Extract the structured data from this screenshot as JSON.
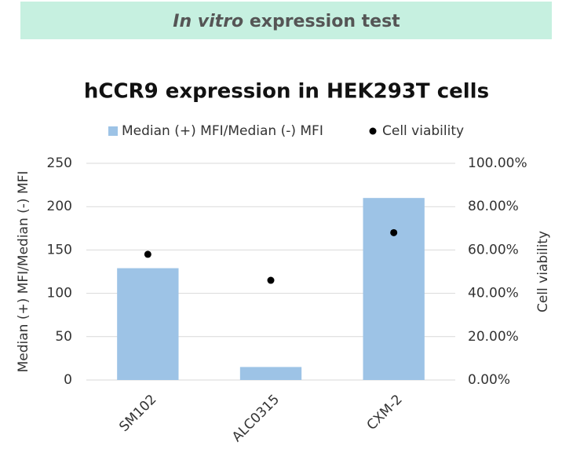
{
  "banner": {
    "italic": "In vitro",
    "text": "expression test"
  },
  "chart_data": {
    "type": "bar",
    "title": "hCCR9 expression in HEK293T cells",
    "categories": [
      "SM102",
      "ALC0315",
      "CXM-2"
    ],
    "series": [
      {
        "name": "Median (+) MFI/Median (-) MFI",
        "type": "bar",
        "color": "#9dc3e6",
        "values": [
          129,
          15,
          210
        ]
      },
      {
        "name": "Cell viability",
        "type": "scatter",
        "color": "#000000",
        "axis": "y2",
        "values": [
          58,
          46,
          68
        ]
      }
    ],
    "y_label": "Median (+) MFI/Median (-) MFI",
    "y2_label": "Cell viability",
    "ylim": [
      0,
      250
    ],
    "yticks": [
      0,
      50,
      100,
      150,
      200,
      250
    ],
    "y2lim": [
      0,
      100
    ],
    "y2ticks": [
      {
        "value": 0,
        "label": "0.00%"
      },
      {
        "value": 20,
        "label": "20.00%"
      },
      {
        "value": 40,
        "label": "40.00%"
      },
      {
        "value": 60,
        "label": "60.00%"
      },
      {
        "value": 80,
        "label": "80.00%"
      },
      {
        "value": 100,
        "label": "100.00%"
      }
    ],
    "grid": true,
    "legend": "top"
  }
}
